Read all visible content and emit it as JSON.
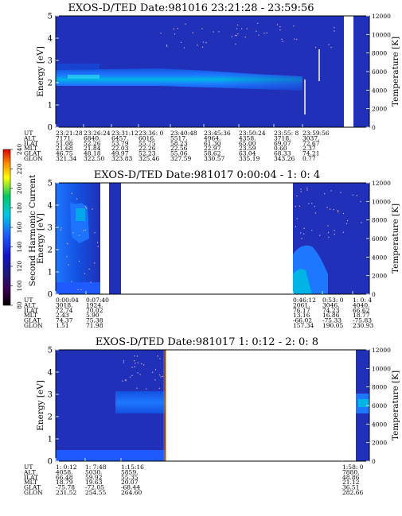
{
  "chart_data": [
    {
      "type": "heatmap",
      "title": "EXOS-D/TED   Date:981016  23:21:28 - 23:59:56",
      "ylabel": "Energy [eV]",
      "y2label": "Temperature [K]",
      "ylim": [
        0,
        5
      ],
      "y2lim": [
        0,
        12000
      ],
      "yticks": [
        "0",
        "1",
        "2",
        "3",
        "4",
        "5"
      ],
      "y2ticks": [
        "0",
        "2000",
        "4000",
        "6000",
        "8000",
        "10000",
        "12000"
      ],
      "row_labels": [
        "UT",
        "ALT",
        "ILAT",
        "MLT",
        "GLAT",
        "GLON"
      ],
      "columns": [
        {
          "UT": "23:21:28",
          "ALT": "7171.",
          "ILAT": "51.08",
          "MLT": "21.68",
          "GLAT": "46.75",
          "GLON": "321.34"
        },
        {
          "UT": "23:26:24",
          "ALT": "6840.",
          "ILAT": "52.26",
          "MLT": "21.84",
          "GLAT": "48.18",
          "GLON": "322.50"
        },
        {
          "UT": "23:31:12",
          "ALT": "6457.",
          "ILAT": "53.79",
          "MLT": "22.03",
          "GLAT": "49.97",
          "GLON": "323.83"
        },
        {
          "UT": "23:36: 0",
          "ALT": "6016.",
          "ILAT": "55.75",
          "MLT": "22.26",
          "GLAT": "52.23",
          "GLON": "325.46"
        },
        {
          "UT": "23:40:48",
          "ALT": "5517.",
          "ILAT": "58.23",
          "MLT": "22.56",
          "GLAT": "55.06",
          "GLON": "327.59"
        },
        {
          "UT": "23:45:36",
          "ALT": "4964.",
          "ILAT": "61.30",
          "MLT": "22.97",
          "GLAT": "58.62",
          "GLON": "330.57"
        },
        {
          "UT": "23:50:24",
          "ALT": "4358.",
          "ILAT": "65.00",
          "MLT": "23.59",
          "GLAT": "63.04",
          "GLON": "335.19"
        },
        {
          "UT": "23:55: 8",
          "ALT": "3718.",
          "ILAT": "69.07",
          "MLT": "0.60",
          "GLAT": "68.33",
          "GLON": "343.26"
        },
        {
          "UT": "23:59:56",
          "ALT": "3037.",
          "ILAT": "72.67",
          "MLT": "2.37",
          "GLAT": "74.21",
          "GLON": "0.77"
        }
      ]
    },
    {
      "type": "heatmap",
      "title": "EXOS-D/TED   Date:981017  0:00:04 - 1: 0: 4",
      "ylabel": "Energy [eV]",
      "y2label": "Temperature [K]",
      "ylim": [
        0,
        5
      ],
      "y2lim": [
        0,
        12000
      ],
      "yticks": [
        "0",
        "1",
        "2",
        "3",
        "4",
        "5"
      ],
      "y2ticks": [
        "0",
        "2000",
        "4000",
        "6000",
        "8000",
        "10000",
        "12000"
      ],
      "row_labels": [
        "UT",
        "ALT",
        "ILAT",
        "MLT",
        "GLAT",
        "GLON"
      ],
      "columns": [
        {
          "UT": "0:00:04",
          "ALT": "3018.",
          "ILAT": "72.74",
          "MLT": "2.43",
          "GLAT": "74.37",
          "GLON": "1.51"
        },
        {
          "UT": "0:07:40",
          "ALT": "1924.",
          "ILAT": "70.02",
          "MLT": "5.90",
          "GLAT": "75.38",
          "GLON": "71.98"
        },
        {
          "UT": "0:46:12",
          "ALT": "2061.",
          "ILAT": "76.17",
          "MLT": "13.16",
          "GLAT": "-66.02",
          "GLON": "157.34"
        },
        {
          "UT": "0:53: 0",
          "ALT": "3046.",
          "ILAT": "74.23",
          "MLT": "16.86",
          "GLAT": "-75.33",
          "GLON": "190.05"
        },
        {
          "UT": "1: 0: 4",
          "ALT": "4040.",
          "ILAT": "66.62",
          "MLT": "18.77",
          "GLAT": "-75.83",
          "GLON": "230.93"
        }
      ]
    },
    {
      "type": "heatmap",
      "title": "EXOS-D/TED   Date:981017  1: 0:12 - 2: 0: 8",
      "ylabel": "Energy [eV]",
      "y2label": "Temperature [K]",
      "ylim": [
        0,
        5
      ],
      "y2lim": [
        0,
        12000
      ],
      "yticks": [
        "0",
        "1",
        "2",
        "3",
        "4",
        "5"
      ],
      "y2ticks": [
        "0",
        "2000",
        "4000",
        "6000",
        "8000",
        "10000",
        "12000"
      ],
      "row_labels": [
        "UT",
        "ALT",
        "ILAT",
        "MLT",
        "GLAT",
        "GLON"
      ],
      "columns": [
        {
          "UT": "1: 0:12",
          "ALT": "4058.",
          "ILAT": "66.48",
          "MLT": "18.79",
          "GLAT": "-75.78",
          "GLON": "231.52"
        },
        {
          "UT": "1: 7:48",
          "ALT": "5030.",
          "ILAT": "59.92",
          "MLT": "19.63",
          "GLAT": "-72.05",
          "GLON": "254.55"
        },
        {
          "UT": "1:15:16",
          "ALT": "5859.",
          "ILAT": "55.35",
          "MLT": "20.07",
          "GLAT": "-68.44",
          "GLON": "264.60"
        },
        {
          "UT": "1:58: 0",
          "ALT": "7880.",
          "ILAT": "48.86",
          "MLT": "21.12",
          "GLAT": "36.51",
          "GLON": "282.66"
        }
      ]
    }
  ],
  "colorbar": {
    "label": "Second Harmonic Current",
    "ticks": [
      "80",
      "100",
      "120",
      "140",
      "160",
      "180",
      "200",
      "220",
      "240"
    ],
    "colors": [
      "#000000",
      "#3a0050",
      "#1e1878",
      "#1414c8",
      "#1e5aff",
      "#00c8e6",
      "#00c864",
      "#ffff00",
      "#ff8c00",
      "#dc0000"
    ]
  },
  "colors": {
    "background": "#2030b8",
    "band_core": "#00b4e6",
    "band_mid": "#1e78ff",
    "band_edge": "#1450e0",
    "dots": "#dcb4c8"
  }
}
